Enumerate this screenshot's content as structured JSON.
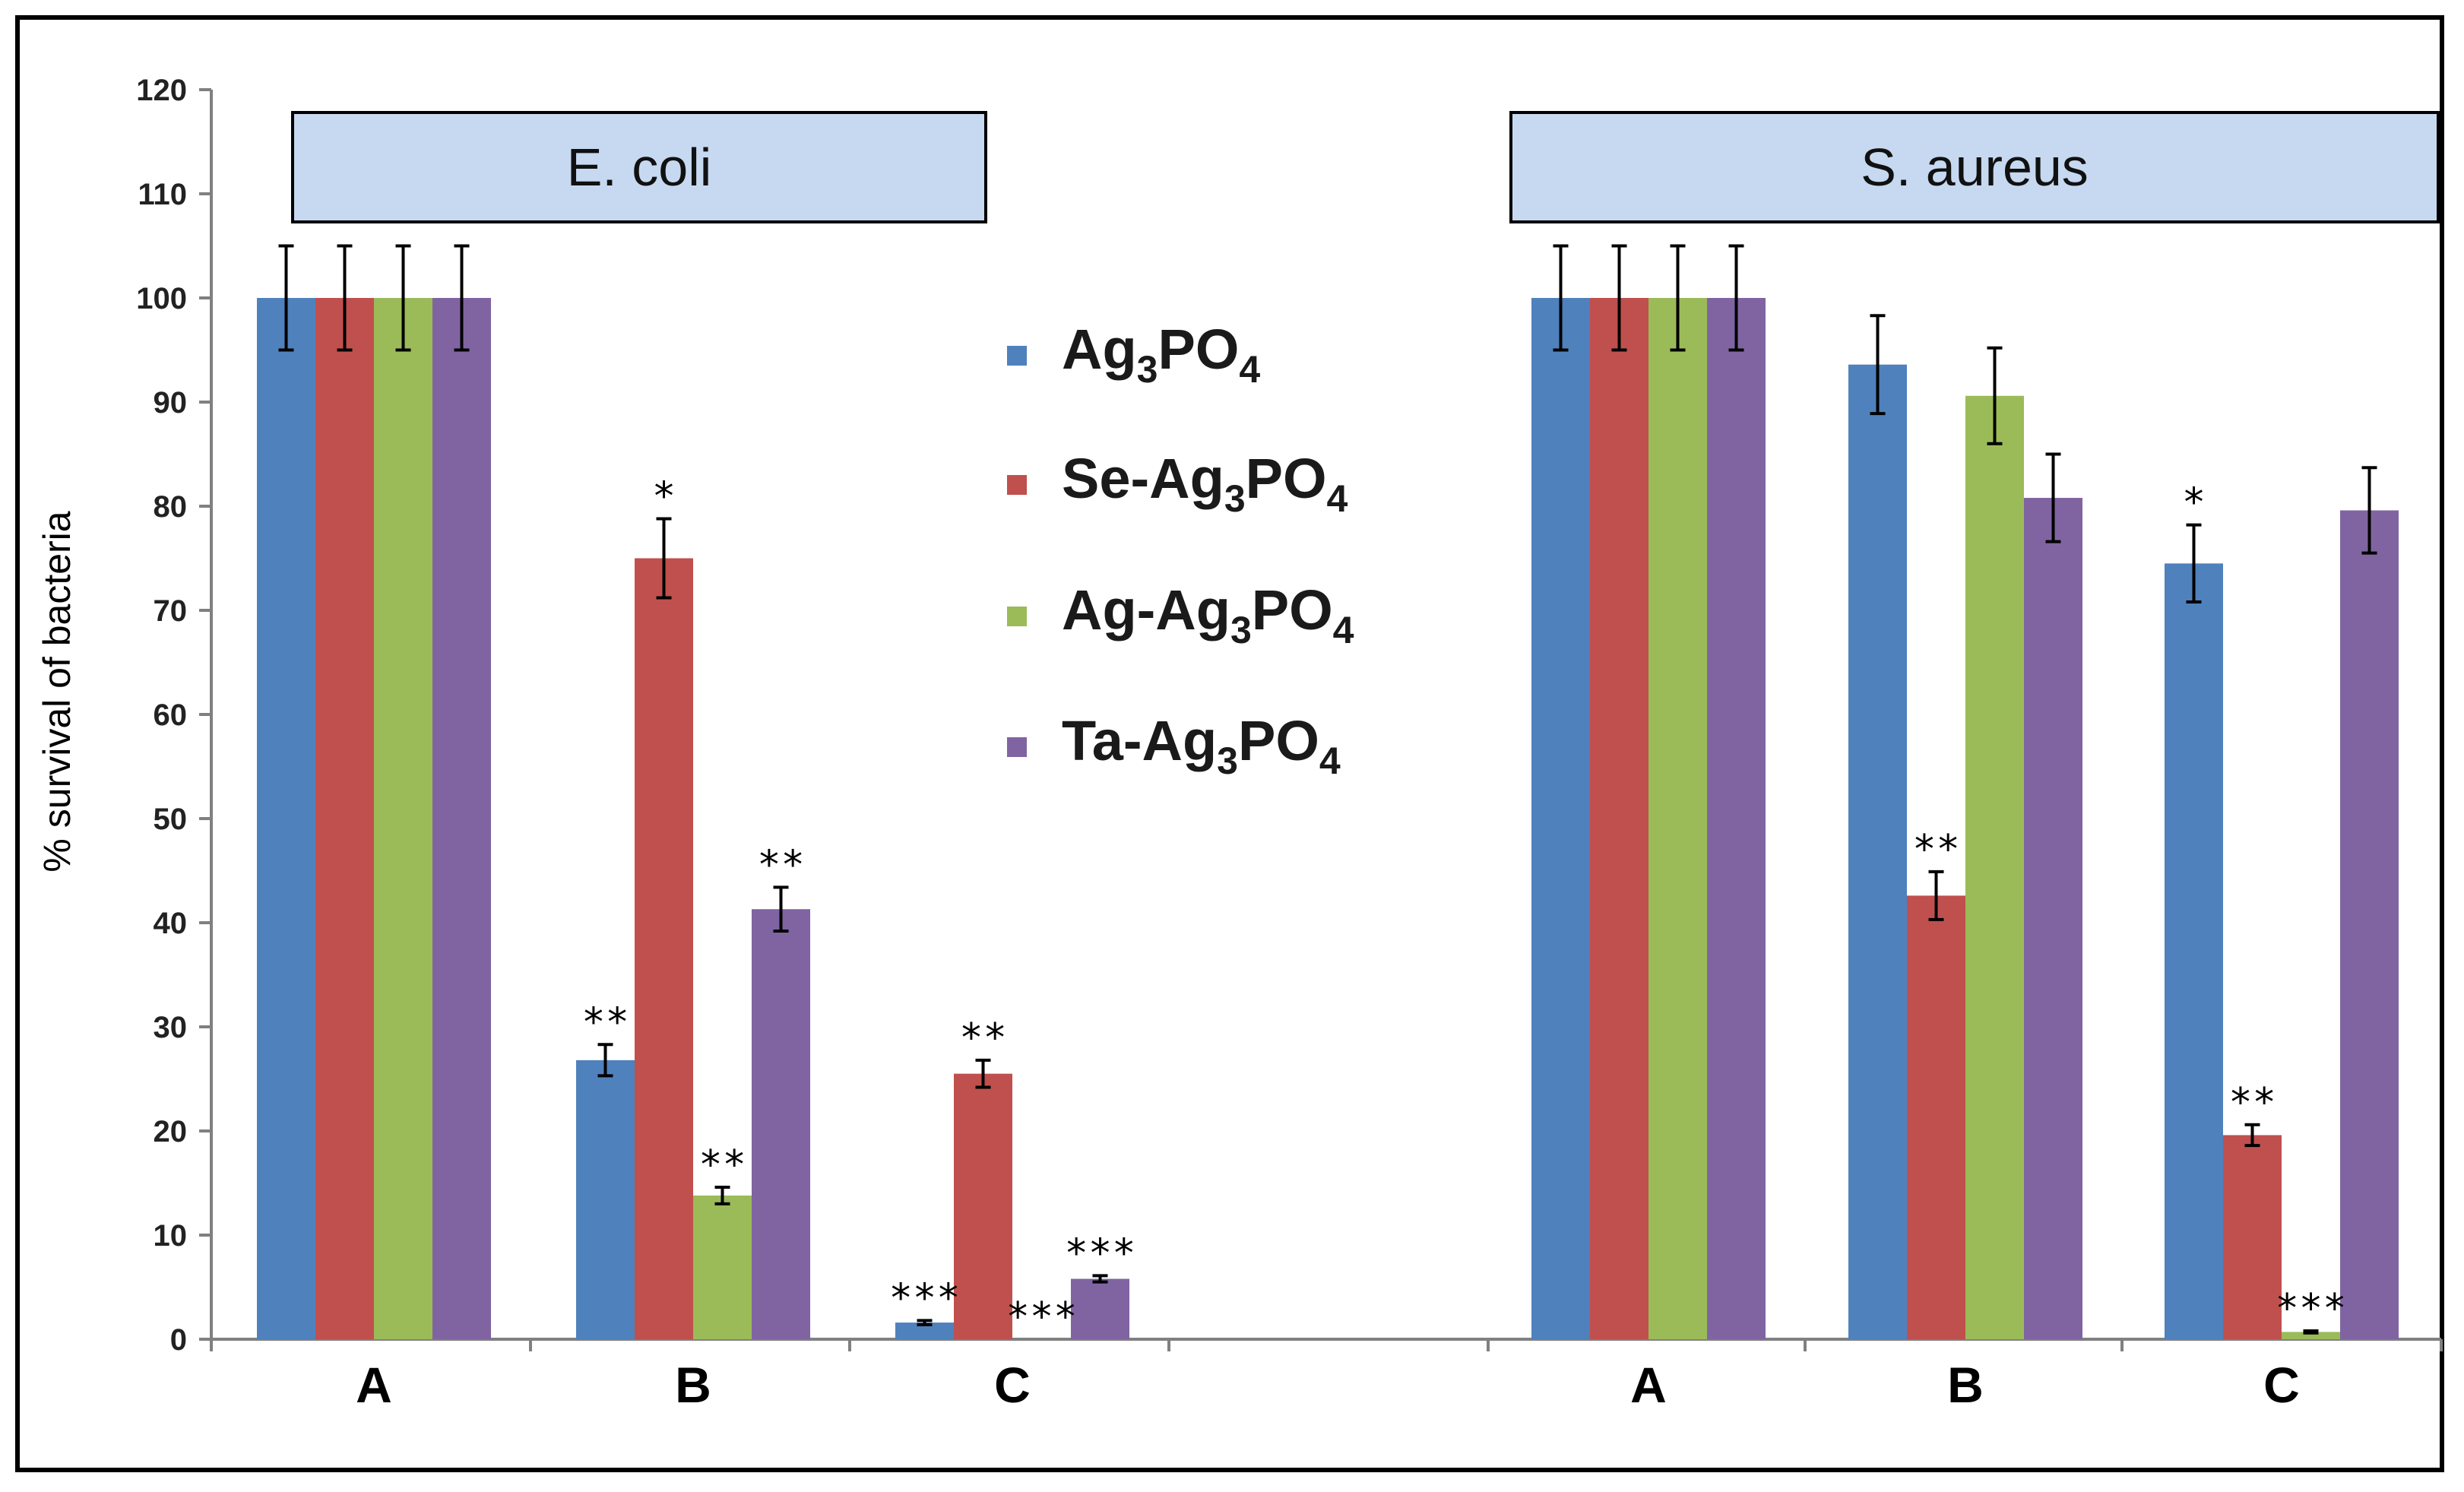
{
  "chart_data": {
    "type": "bar",
    "title": "",
    "xlabel": "",
    "ylabel": "% survival  of bacteria",
    "ylim": [
      0,
      120
    ],
    "yticks": [
      "0",
      "10",
      "20",
      "30",
      "40",
      "50",
      "60",
      "70",
      "80",
      "90",
      "100",
      "110",
      "120"
    ],
    "legend_position": "center",
    "series": [
      {
        "name": "Ag3PO4",
        "label_parts": [
          "Ag",
          "3",
          "PO",
          "4"
        ],
        "color": "#4f81bd"
      },
      {
        "name": "Se-Ag3PO4",
        "label_parts": [
          "Se-Ag",
          "3",
          "PO",
          "4"
        ],
        "color": "#c0504d"
      },
      {
        "name": "Ag-Ag3PO4",
        "label_parts": [
          "Ag-Ag",
          "3",
          "PO",
          "4"
        ],
        "color": "#9bbb59"
      },
      {
        "name": "Ta-Ag3PO4",
        "label_parts": [
          "Ta-Ag",
          "3",
          "PO",
          "4"
        ],
        "color": "#8064a2"
      }
    ],
    "panels": [
      {
        "name": "E. coli",
        "groups": [
          {
            "category": "A",
            "values": [
              100,
              100,
              100,
              100
            ],
            "errors": [
              5,
              5,
              5,
              5
            ],
            "significance": [
              "",
              "",
              "",
              ""
            ]
          },
          {
            "category": "B",
            "values": [
              26.8,
              75,
              13.8,
              41.3
            ],
            "errors": [
              1.5,
              3.8,
              0.8,
              2.1
            ],
            "significance": [
              "**",
              "*",
              "**",
              "**"
            ]
          },
          {
            "category": "C",
            "values": [
              1.6,
              25.5,
              0,
              5.8
            ],
            "errors": [
              0.2,
              1.3,
              0,
              0.3
            ],
            "significance": [
              "***",
              "**",
              "***",
              "***"
            ]
          }
        ]
      },
      {
        "name": "S. aureus",
        "groups": [
          {
            "category": "A",
            "values": [
              100,
              100,
              100,
              100
            ],
            "errors": [
              5,
              5,
              5,
              5
            ],
            "significance": [
              "",
              "",
              "",
              ""
            ]
          },
          {
            "category": "B",
            "values": [
              93.6,
              42.6,
              90.6,
              80.8
            ],
            "errors": [
              4.7,
              2.3,
              4.6,
              4.2
            ],
            "significance": [
              "",
              "**",
              "",
              ""
            ]
          },
          {
            "category": "C",
            "values": [
              74.5,
              19.6,
              0.7,
              79.6
            ],
            "errors": [
              3.7,
              1.0,
              0.1,
              4.1
            ],
            "significance": [
              "*",
              "**",
              "***",
              ""
            ]
          }
        ]
      }
    ]
  }
}
